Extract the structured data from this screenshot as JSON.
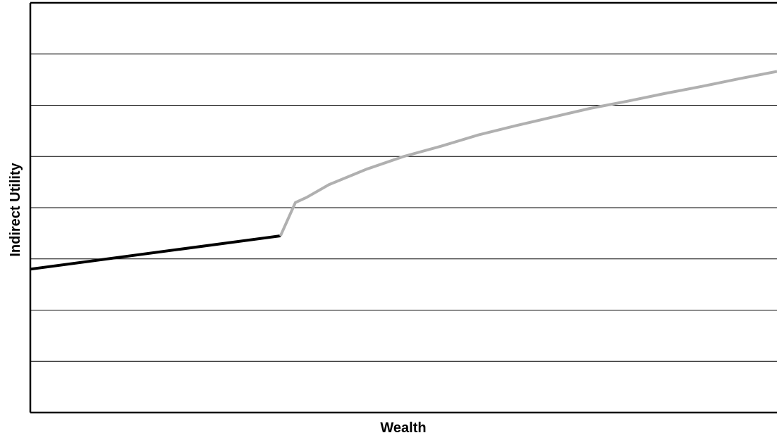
{
  "chart_data": {
    "type": "line",
    "title": "",
    "xlabel": "Wealth",
    "ylabel": "Indirect Utility",
    "xlim": [
      0,
      100
    ],
    "ylim": [
      0,
      8
    ],
    "grid": true,
    "legend": "none",
    "tick_labels_shown": false,
    "series": [
      {
        "color": "#000000",
        "points": [
          [
            0,
            2.8
          ],
          [
            33.5,
            3.45
          ]
        ]
      },
      {
        "color": "#b0b0b0",
        "points": [
          [
            33.5,
            3.45
          ],
          [
            35.5,
            4.1
          ],
          [
            37,
            4.2
          ],
          [
            40,
            4.45
          ],
          [
            45,
            4.75
          ],
          [
            50,
            5.0
          ],
          [
            55,
            5.2
          ],
          [
            60,
            5.42
          ],
          [
            65,
            5.6
          ],
          [
            70,
            5.77
          ],
          [
            75,
            5.94
          ],
          [
            80,
            6.08
          ],
          [
            85,
            6.23
          ],
          [
            90,
            6.37
          ],
          [
            95,
            6.52
          ],
          [
            100,
            6.66
          ]
        ]
      }
    ]
  }
}
